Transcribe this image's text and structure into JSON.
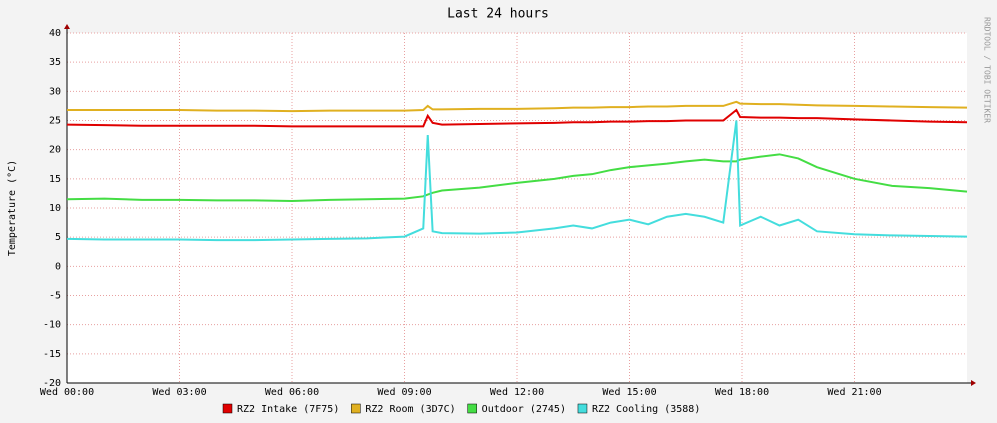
{
  "chart_data": {
    "type": "line",
    "title": "Last 24 hours",
    "y_label": "Temperature (°C)",
    "watermark": "RRDTOOL / TOBI OETIKER",
    "x": [
      0,
      1,
      2,
      3,
      4,
      5,
      6,
      7,
      8,
      9,
      9.5,
      9.62,
      9.75,
      10,
      11,
      12,
      13,
      13.5,
      14,
      14.5,
      15,
      15.5,
      16,
      16.5,
      17,
      17.5,
      17.85,
      17.95,
      18.5,
      19,
      19.5,
      20,
      21,
      22,
      23,
      24
    ],
    "xlim": [
      0,
      24
    ],
    "xticks": [
      {
        "value": 0,
        "label": "Wed 00:00"
      },
      {
        "value": 3,
        "label": "Wed 03:00"
      },
      {
        "value": 6,
        "label": "Wed 06:00"
      },
      {
        "value": 9,
        "label": "Wed 09:00"
      },
      {
        "value": 12,
        "label": "Wed 12:00"
      },
      {
        "value": 15,
        "label": "Wed 15:00"
      },
      {
        "value": 18,
        "label": "Wed 18:00"
      },
      {
        "value": 21,
        "label": "Wed 21:00"
      }
    ],
    "ylim": [
      -20,
      40
    ],
    "yticks": [
      -20,
      -15,
      -10,
      -5,
      0,
      5,
      10,
      15,
      20,
      25,
      30,
      35,
      40
    ],
    "grid": true,
    "series": [
      {
        "name": "RZ2 Intake (7F75)",
        "color": "#e00000",
        "values": [
          24.3,
          24.2,
          24.1,
          24.1,
          24.1,
          24.1,
          24.0,
          24.0,
          24.0,
          24.0,
          24.0,
          25.8,
          24.6,
          24.3,
          24.4,
          24.5,
          24.6,
          24.7,
          24.7,
          24.8,
          24.8,
          24.9,
          24.9,
          25.0,
          25.0,
          25.0,
          26.8,
          25.6,
          25.5,
          25.5,
          25.4,
          25.4,
          25.2,
          25.0,
          24.8,
          24.7
        ]
      },
      {
        "name": "RZ2 Room (3D7C)",
        "color": "#e0b020",
        "values": [
          26.8,
          26.8,
          26.8,
          26.8,
          26.7,
          26.7,
          26.6,
          26.7,
          26.7,
          26.7,
          26.8,
          27.5,
          26.9,
          26.9,
          27.0,
          27.0,
          27.1,
          27.2,
          27.2,
          27.3,
          27.3,
          27.4,
          27.4,
          27.5,
          27.5,
          27.5,
          28.2,
          27.9,
          27.8,
          27.8,
          27.7,
          27.6,
          27.5,
          27.4,
          27.3,
          27.2
        ]
      },
      {
        "name": "Outdoor (2745)",
        "color": "#44dd44",
        "values": [
          11.5,
          11.6,
          11.4,
          11.4,
          11.3,
          11.3,
          11.2,
          11.4,
          11.5,
          11.6,
          12.0,
          12.3,
          12.6,
          13.0,
          13.5,
          14.3,
          15.0,
          15.5,
          15.8,
          16.5,
          17.0,
          17.3,
          17.6,
          18.0,
          18.3,
          18.0,
          18.0,
          18.3,
          18.8,
          19.2,
          18.5,
          17.0,
          15.0,
          13.8,
          13.4,
          12.8
        ]
      },
      {
        "name": "RZ2 Cooling (3588)",
        "color": "#44dddd",
        "values": [
          4.7,
          4.6,
          4.6,
          4.6,
          4.5,
          4.5,
          4.6,
          4.7,
          4.8,
          5.1,
          6.5,
          22.5,
          6.0,
          5.7,
          5.6,
          5.8,
          6.5,
          7.0,
          6.5,
          7.5,
          8.0,
          7.2,
          8.5,
          9.0,
          8.5,
          7.5,
          25.0,
          7.0,
          8.5,
          7.0,
          8.0,
          6.0,
          5.5,
          5.3,
          5.2,
          5.1
        ]
      }
    ]
  }
}
